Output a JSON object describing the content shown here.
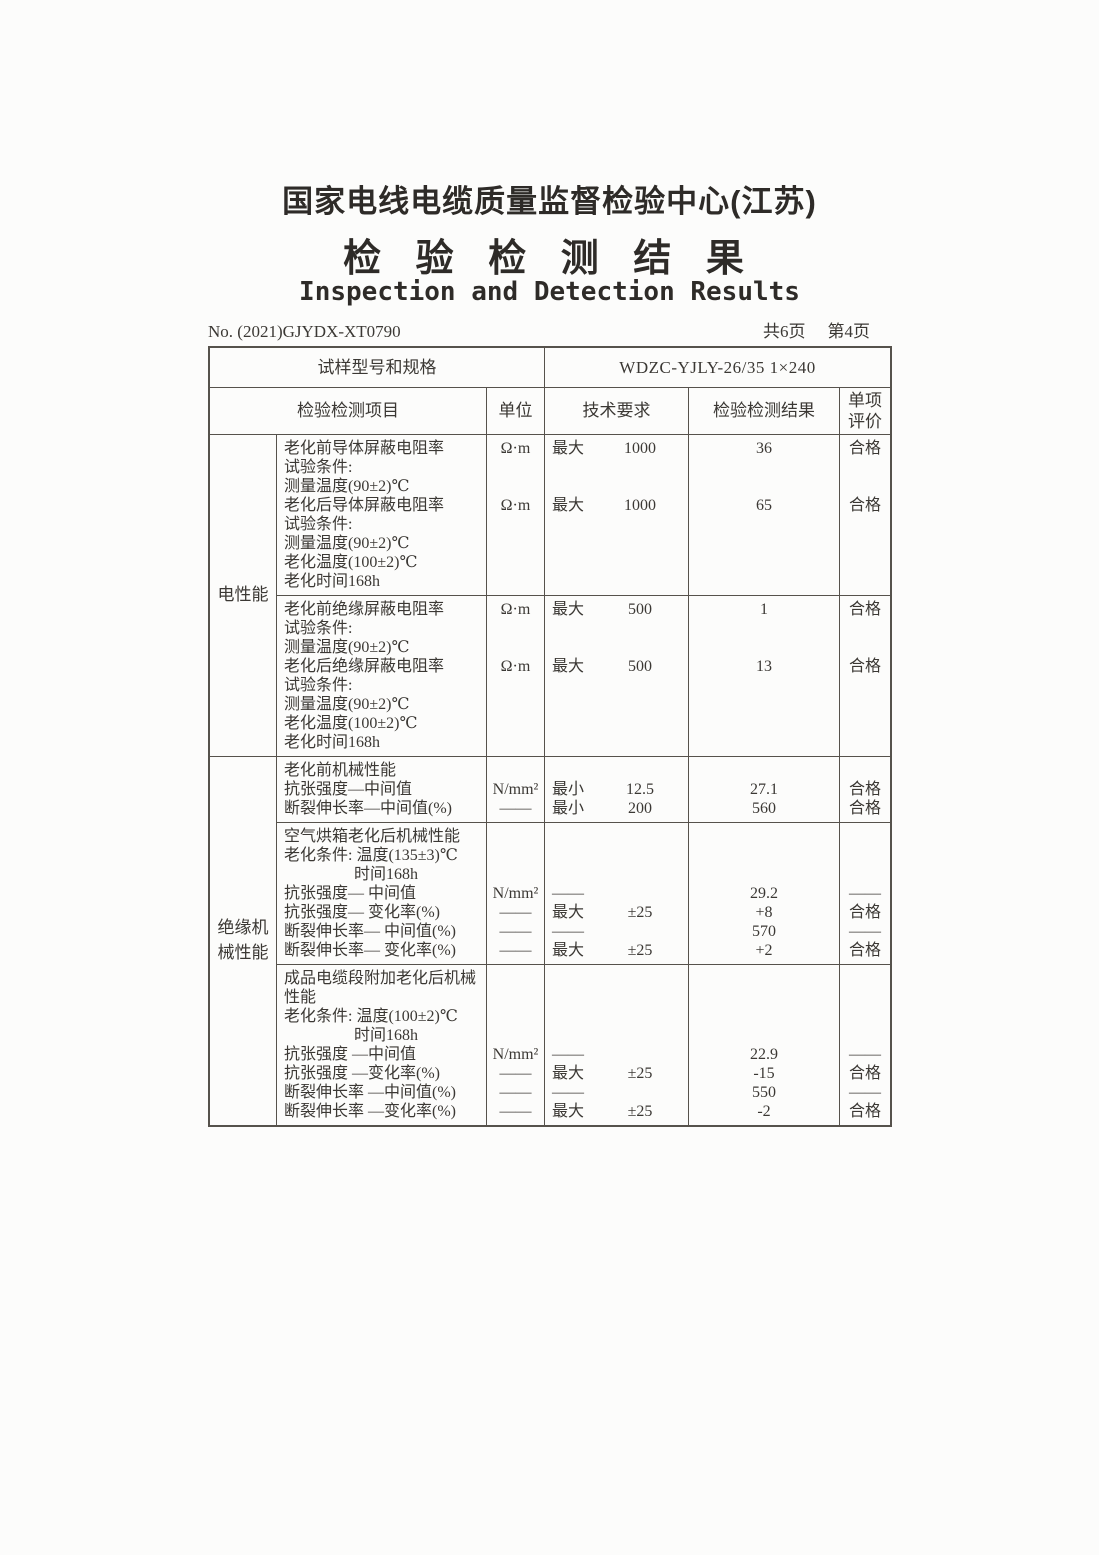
{
  "colors": {
    "ink": "#3b3834",
    "border": "#56524c",
    "paper": "#fcfcfb"
  },
  "page": {
    "org_title": "国家电线电缆质量监督检验中心(江苏)",
    "title_cn": "检 验 检 测 结 果",
    "title_en": "Inspection and Detection Results",
    "report_no": "No. (2021)GJYDX-XT0790",
    "pages_total": "共6页",
    "page_current": "第4页"
  },
  "table": {
    "model_label": "试样型号和规格",
    "model_value": "WDZC-YJLY-26/35 1×240",
    "headers": {
      "item": "检验检测项目",
      "unit": "单位",
      "requirement": "技术要求",
      "result": "检验检测结果",
      "evaluation": "单项评价"
    },
    "sections": [
      {
        "category": "电性能",
        "blocks": [
          {
            "lines": [
              {
                "item": "老化前导体屏蔽电阻率",
                "unit": "Ω·m",
                "req_q": "最大",
                "req_v": "1000",
                "result": "36",
                "eval": "合格"
              },
              {
                "item": "试验条件:"
              },
              {
                "item": "测量温度(90±2)℃"
              },
              {
                "item": "老化后导体屏蔽电阻率",
                "unit": "Ω·m",
                "req_q": "最大",
                "req_v": "1000",
                "result": "65",
                "eval": "合格"
              },
              {
                "item": "试验条件:"
              },
              {
                "item": "测量温度(90±2)℃"
              },
              {
                "item": "老化温度(100±2)℃"
              },
              {
                "item": "老化时间168h"
              }
            ]
          },
          {
            "lines": [
              {
                "item": "老化前绝缘屏蔽电阻率",
                "unit": "Ω·m",
                "req_q": "最大",
                "req_v": "500",
                "result": "1",
                "eval": "合格"
              },
              {
                "item": "试验条件:"
              },
              {
                "item": "测量温度(90±2)℃"
              },
              {
                "item": "老化后绝缘屏蔽电阻率",
                "unit": "Ω·m",
                "req_q": "最大",
                "req_v": "500",
                "result": "13",
                "eval": "合格"
              },
              {
                "item": "试验条件:"
              },
              {
                "item": "测量温度(90±2)℃"
              },
              {
                "item": "老化温度(100±2)℃"
              },
              {
                "item": "老化时间168h"
              }
            ]
          }
        ]
      },
      {
        "category": "绝缘机械性能",
        "blocks": [
          {
            "lines": [
              {
                "item": "老化前机械性能"
              },
              {
                "item": "抗张强度—中间值",
                "unit": "N/mm²",
                "req_q": "最小",
                "req_v": "12.5",
                "result": "27.1",
                "eval": "合格"
              },
              {
                "item": "断裂伸长率—中间值(%)",
                "unit": "——",
                "req_q": "最小",
                "req_v": "200",
                "result": "560",
                "eval": "合格"
              }
            ]
          },
          {
            "lines": [
              {
                "item": "空气烘箱老化后机械性能"
              },
              {
                "item": "老化条件: 温度(135±3)℃"
              },
              {
                "item": "时间168h",
                "indent": true
              },
              {
                "item": "抗张强度— 中间值",
                "unit": "N/mm²",
                "req_q": "——",
                "result": "29.2",
                "eval": "——"
              },
              {
                "item": "抗张强度— 变化率(%)",
                "unit": "——",
                "req_q": "最大",
                "req_v": "±25",
                "result": "+8",
                "eval": "合格"
              },
              {
                "item": "断裂伸长率— 中间值(%)",
                "unit": "——",
                "req_q": "——",
                "result": "570",
                "eval": "——"
              },
              {
                "item": "断裂伸长率— 变化率(%)",
                "unit": "——",
                "req_q": "最大",
                "req_v": "±25",
                "result": "+2",
                "eval": "合格"
              }
            ]
          },
          {
            "lines": [
              {
                "item": "成品电缆段附加老化后机械"
              },
              {
                "item": "性能"
              },
              {
                "item": "老化条件: 温度(100±2)℃"
              },
              {
                "item": "时间168h",
                "indent": true
              },
              {
                "item": "抗张强度 —中间值",
                "unit": "N/mm²",
                "req_q": "——",
                "result": "22.9",
                "eval": "——"
              },
              {
                "item": "抗张强度 —变化率(%)",
                "unit": "——",
                "req_q": "最大",
                "req_v": "±25",
                "result": "-15",
                "eval": "合格"
              },
              {
                "item": "断裂伸长率 —中间值(%)",
                "unit": "——",
                "req_q": "——",
                "result": "550",
                "eval": "——"
              },
              {
                "item": "断裂伸长率 —变化率(%)",
                "unit": "——",
                "req_q": "最大",
                "req_v": "±25",
                "result": "-2",
                "eval": "合格"
              }
            ]
          }
        ]
      }
    ]
  }
}
